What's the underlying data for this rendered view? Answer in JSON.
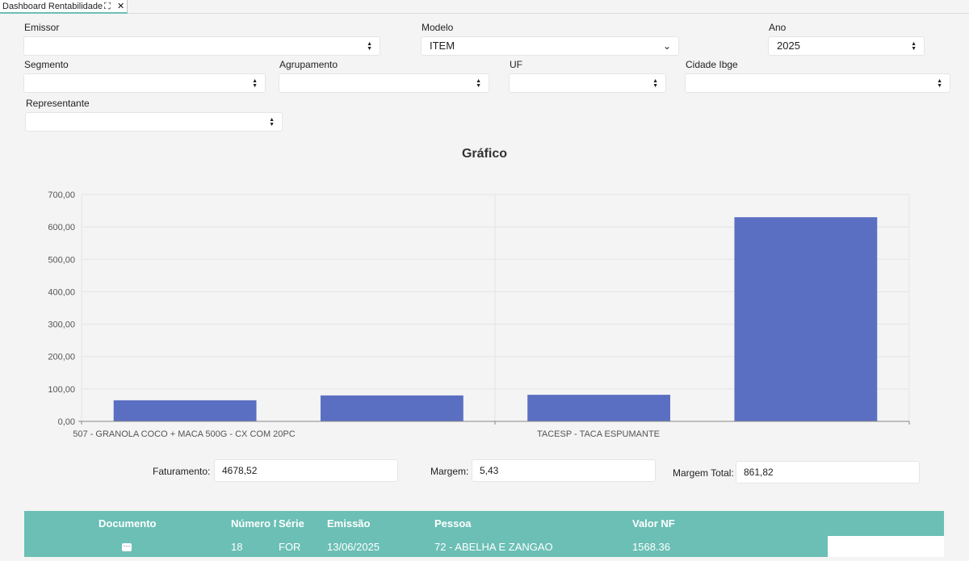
{
  "tab": {
    "title": "Dashboard Rentabilidade",
    "expand_glyph": "⛶",
    "close_glyph": "✕"
  },
  "filters": {
    "emissor": {
      "label": "Emissor",
      "value": ""
    },
    "modelo": {
      "label": "Modelo",
      "value": "ITEM"
    },
    "ano": {
      "label": "Ano",
      "value": "2025"
    },
    "segmento": {
      "label": "Segmento",
      "value": ""
    },
    "agrupamento": {
      "label": "Agrupamento",
      "value": ""
    },
    "uf": {
      "label": "UF",
      "value": ""
    },
    "cidade": {
      "label": "Cidade Ibge",
      "value": ""
    },
    "representante": {
      "label": "Representante",
      "value": ""
    }
  },
  "chart_data": {
    "type": "bar",
    "title": "Gráfico",
    "x_tick_labels": [
      "507 - GRANOLA COCO + MACA 500G - CX COM 20PC",
      "TACESP - TACA ESPUMANTE"
    ],
    "series": [
      {
        "values": [
          65,
          80,
          82,
          630
        ]
      }
    ],
    "ylim": [
      0,
      700
    ],
    "y_ticks": [
      "0,00",
      "100,00",
      "200,00",
      "300,00",
      "400,00",
      "500,00",
      "600,00",
      "700,00"
    ],
    "grid": true,
    "bar_color": "#5b6fc2"
  },
  "metrics": {
    "faturamento": {
      "label": "Faturamento:",
      "value": "4678,52"
    },
    "margem": {
      "label": "Margem:",
      "value": "5,43"
    },
    "margem_total": {
      "label": "Margem Total:",
      "value": "861,82"
    }
  },
  "table": {
    "headers": {
      "documento": "Documento",
      "numero": "Número NF",
      "serie": "Série",
      "emissao": "Emissão",
      "pessoa": "Pessoa",
      "valor": "Valor NF"
    },
    "rows": [
      {
        "documento_icon": "dots-icon",
        "numero": "18",
        "serie": "FOR",
        "emissao": "13/06/2025",
        "pessoa": "72 - ABELHA E ZANGAO",
        "valor": "1568.36"
      }
    ],
    "header_color": "#6bbfb5"
  }
}
